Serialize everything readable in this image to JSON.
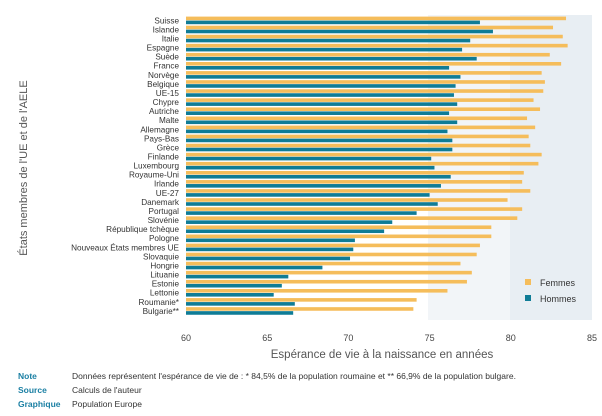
{
  "chart_data": {
    "type": "bar",
    "orientation": "horizontal",
    "categories": [
      "Suisse",
      "Islande",
      "Italie",
      "Espagne",
      "Suède",
      "France",
      "Norvège",
      "Belgique",
      "UE-15",
      "Chypre",
      "Autriche",
      "Malte",
      "Allemagne",
      "Pays-Bas",
      "Grèce",
      "Finlande",
      "Luxembourg",
      "Royaume-Uni",
      "Irlande",
      "UE-27",
      "Danemark",
      "Portugal",
      "Slovénie",
      "République tchèque",
      "Pologne",
      "Nouveaux États membres UE",
      "Slovaquie",
      "Hongrie",
      "Lituanie",
      "Estonie",
      "Lettonie",
      "Roumanie*",
      "Bulgarie**"
    ],
    "series": [
      {
        "name": "Femmes",
        "color": "#f5bd5b",
        "values": [
          83.4,
          82.6,
          83.2,
          83.5,
          82.4,
          83.1,
          81.9,
          82.1,
          82.0,
          81.4,
          81.8,
          81.0,
          81.5,
          81.1,
          81.2,
          81.9,
          81.7,
          80.8,
          80.7,
          81.2,
          79.8,
          80.7,
          80.4,
          78.8,
          78.8,
          78.1,
          77.9,
          76.9,
          77.6,
          77.3,
          76.1,
          74.2,
          74.0
        ]
      },
      {
        "name": "Hommes",
        "color": "#0f7c96",
        "values": [
          78.1,
          78.9,
          77.5,
          77.0,
          77.9,
          76.2,
          76.9,
          76.6,
          76.5,
          76.7,
          76.2,
          76.7,
          76.1,
          76.4,
          76.4,
          75.1,
          75.3,
          76.3,
          75.7,
          75.0,
          75.5,
          74.2,
          72.7,
          72.2,
          70.4,
          70.3,
          70.1,
          68.4,
          66.3,
          65.9,
          65.4,
          66.7,
          66.6
        ]
      }
    ],
    "xlabel": "Espérance de vie à la naissance en années",
    "ylabel": "États membres de l'UE et de l'AELE",
    "xlim": [
      60,
      85
    ],
    "xticks": [
      60,
      65,
      70,
      75,
      80,
      85
    ],
    "legend_position": "bottom-right",
    "grid": false
  },
  "footer": {
    "note_key": "Note",
    "note_text": "Données représentent l'espérance de vie de : * 84,5% de la population roumaine et  ** 66,9% de la population bulgare.",
    "source_key": "Source",
    "source_text": "Calculs de l'auteur",
    "graphic_key": "Graphique",
    "graphic_text": "Population Europe"
  }
}
